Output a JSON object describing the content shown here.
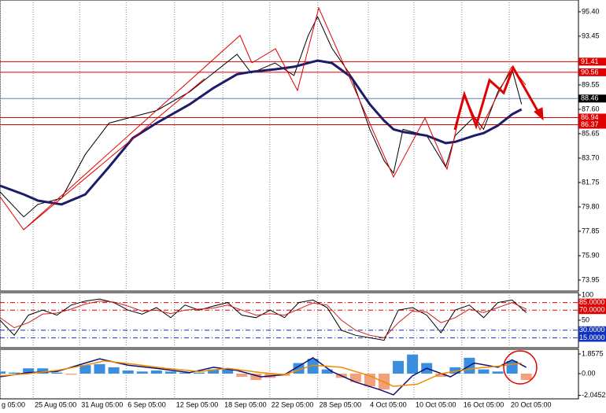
{
  "chart_data": [
    {
      "type": "line",
      "x": [
        0,
        5,
        8,
        13,
        18,
        23,
        28,
        33,
        40,
        45,
        50,
        53,
        58,
        62,
        65,
        67,
        70,
        74,
        78,
        81,
        83,
        85,
        90,
        94,
        96,
        100,
        102,
        105,
        108,
        110
      ],
      "series": [
        {
          "color": "#000000",
          "values": [
            81.0,
            79.0,
            80.0,
            80.5,
            84.0,
            86.5,
            87.0,
            87.5,
            89.0,
            90.5,
            92.0,
            90.5,
            91.3,
            90.3,
            93.5,
            95.0,
            92.5,
            90.3,
            86.0,
            83.5,
            82.5,
            86.0,
            85.5,
            83.0,
            85.5,
            87.0,
            86.0,
            89.0,
            90.8,
            88.0
          ]
        },
        {
          "color": "#1c1c6b",
          "values": [
            81.5,
            80.8,
            80.3,
            80.0,
            80.8,
            83.0,
            85.3,
            86.5,
            88.0,
            89.3,
            90.4,
            90.6,
            90.8,
            91.0,
            91.3,
            91.5,
            91.3,
            90.2,
            88.0,
            86.7,
            86.0,
            85.8,
            85.5,
            84.9,
            85.0,
            85.5,
            85.7,
            86.3,
            87.2,
            87.6
          ]
        }
      ],
      "xlim": [
        0,
        122
      ],
      "ylim": [
        73.07,
        96.34
      ],
      "yticks": [
        {
          "value": 95.4,
          "label": "95.40"
        },
        {
          "value": 93.45,
          "label": "93.45"
        },
        {
          "value": 89.55,
          "label": "89.55"
        },
        {
          "value": 87.6,
          "label": "87.60"
        },
        {
          "value": 85.65,
          "label": "85.65"
        },
        {
          "value": 83.7,
          "label": "83.70"
        },
        {
          "value": 81.75,
          "label": "81.75"
        },
        {
          "value": 79.8,
          "label": "79.80"
        },
        {
          "value": 77.85,
          "label": "77.85"
        },
        {
          "value": 75.9,
          "label": "75.90"
        },
        {
          "value": 73.95,
          "label": "73.95"
        }
      ],
      "xticks": [
        {
          "value": 0,
          "label": "g 05:00"
        },
        {
          "value": 7,
          "label": "25 Aug 05:00"
        },
        {
          "value": 16.8,
          "label": "31 Aug 05:00"
        },
        {
          "value": 26.6,
          "label": "6 Sep 05:00"
        },
        {
          "value": 36.8,
          "label": "12 Sep 05:00"
        },
        {
          "value": 47,
          "label": "18 Sep 05:00"
        },
        {
          "value": 56.9,
          "label": "22 Sep 05:00"
        },
        {
          "value": 67,
          "label": "28 Sep 05:00"
        },
        {
          "value": 77.7,
          "label": "4 Oct 05:00"
        },
        {
          "value": 87.3,
          "label": "10 Oct 05:00"
        },
        {
          "value": 97.4,
          "label": "16 Oct 05:00"
        },
        {
          "value": 107.4,
          "label": "20 Oct 05:00"
        }
      ],
      "hlines": [
        91.41,
        90.56,
        88.46,
        86.94,
        86.37
      ],
      "hline_colors": [
        "#e00000",
        "#e00000",
        "#000000",
        "#e00000",
        "#e00000"
      ],
      "grid": true
    },
    {
      "type": "line",
      "x": [
        0,
        3,
        6,
        9,
        12,
        15,
        18,
        21,
        24,
        27,
        30,
        33,
        36,
        39,
        42,
        45,
        48,
        51,
        54,
        57,
        60,
        63,
        66,
        69,
        72,
        75,
        78,
        81,
        84,
        87,
        90,
        93,
        96,
        99,
        102,
        105,
        108,
        111
      ],
      "series": [
        {
          "color": "#000000",
          "values": [
            50,
            20,
            60,
            70,
            60,
            80,
            88,
            92,
            85,
            70,
            62,
            75,
            55,
            80,
            70,
            78,
            85,
            60,
            55,
            70,
            55,
            85,
            90,
            75,
            30,
            20,
            15,
            10,
            70,
            75,
            60,
            25,
            70,
            80,
            55,
            85,
            90,
            65
          ]
        },
        {
          "color": "#d02020",
          "values": [
            55,
            35,
            45,
            62,
            64,
            72,
            82,
            88,
            86,
            78,
            68,
            70,
            63,
            70,
            72,
            74,
            80,
            70,
            60,
            63,
            60,
            72,
            84,
            80,
            50,
            30,
            20,
            15,
            45,
            68,
            66,
            45,
            55,
            72,
            65,
            75,
            85,
            72
          ]
        }
      ],
      "ylim": [
        0,
        100
      ],
      "yticks": [
        100,
        50
      ],
      "levels": [
        {
          "value": 85,
          "label": "85.0000"
        },
        {
          "value": 70,
          "label": "70.0000"
        },
        {
          "value": 30,
          "label": "30.0000"
        },
        {
          "value": 15,
          "label": "15.0000"
        }
      ],
      "level_colors": [
        "#e00000",
        "#e00000",
        "#1030c0",
        "#1030c0"
      ]
    },
    {
      "type": "bar",
      "x": [
        0,
        3,
        6,
        9,
        12,
        15,
        18,
        21,
        24,
        27,
        30,
        33,
        36,
        39,
        42,
        45,
        48,
        51,
        54,
        57,
        60,
        63,
        66,
        69,
        72,
        75,
        78,
        81,
        84,
        87,
        90,
        93,
        96,
        99,
        102,
        105,
        108,
        111
      ],
      "values": [
        0.2,
        0.1,
        0.5,
        0.5,
        0.1,
        -0.1,
        0.8,
        0.9,
        0.6,
        0.3,
        0.2,
        0.3,
        0.2,
        0.1,
        0.1,
        0.4,
        0.5,
        -0.3,
        -0.6,
        -0.4,
        -0.2,
        1.0,
        1.4,
        0.4,
        -0.4,
        -0.8,
        -1.2,
        -1.5,
        1.2,
        1.8,
        1.0,
        -0.3,
        0.6,
        1.5,
        0.4,
        0.2,
        1.2,
        -0.6
      ],
      "bar_colors": {
        "positive": "#3a8ee0",
        "negative": "#f4a07a"
      },
      "lines": [
        {
          "color": "#101070",
          "x": [
            0,
            6,
            12,
            18,
            21,
            27,
            33,
            40,
            45,
            50,
            55,
            60,
            66,
            70,
            75,
            80,
            83,
            87,
            90,
            95,
            100,
            105,
            108,
            111
          ],
          "values": [
            -0.3,
            0.1,
            0.2,
            1.0,
            1.4,
            0.8,
            0.5,
            0.1,
            0.6,
            0.3,
            -0.3,
            -0.1,
            1.5,
            0.2,
            -0.8,
            -1.5,
            -2.0,
            -0.2,
            0.5,
            -0.3,
            1.0,
            0.6,
            1.3,
            0.6
          ]
        },
        {
          "color": "#f08a00",
          "x": [
            0,
            6,
            12,
            18,
            22,
            28,
            35,
            42,
            48,
            55,
            60,
            66,
            72,
            78,
            83,
            88,
            93,
            100,
            105,
            110
          ],
          "values": [
            -0.2,
            0,
            0.3,
            0.8,
            1.2,
            0.9,
            0.5,
            0.2,
            0.5,
            0.1,
            -0.1,
            0.8,
            0.6,
            -0.2,
            -1.2,
            -1.0,
            0.0,
            0.5,
            0.7,
            1.0
          ]
        }
      ],
      "ylim": [
        -2.23,
        2.3
      ],
      "yticks": [
        1.8575,
        {
          "value": 0,
          "label": "0.00"
        },
        -2.0452
      ]
    }
  ]
}
